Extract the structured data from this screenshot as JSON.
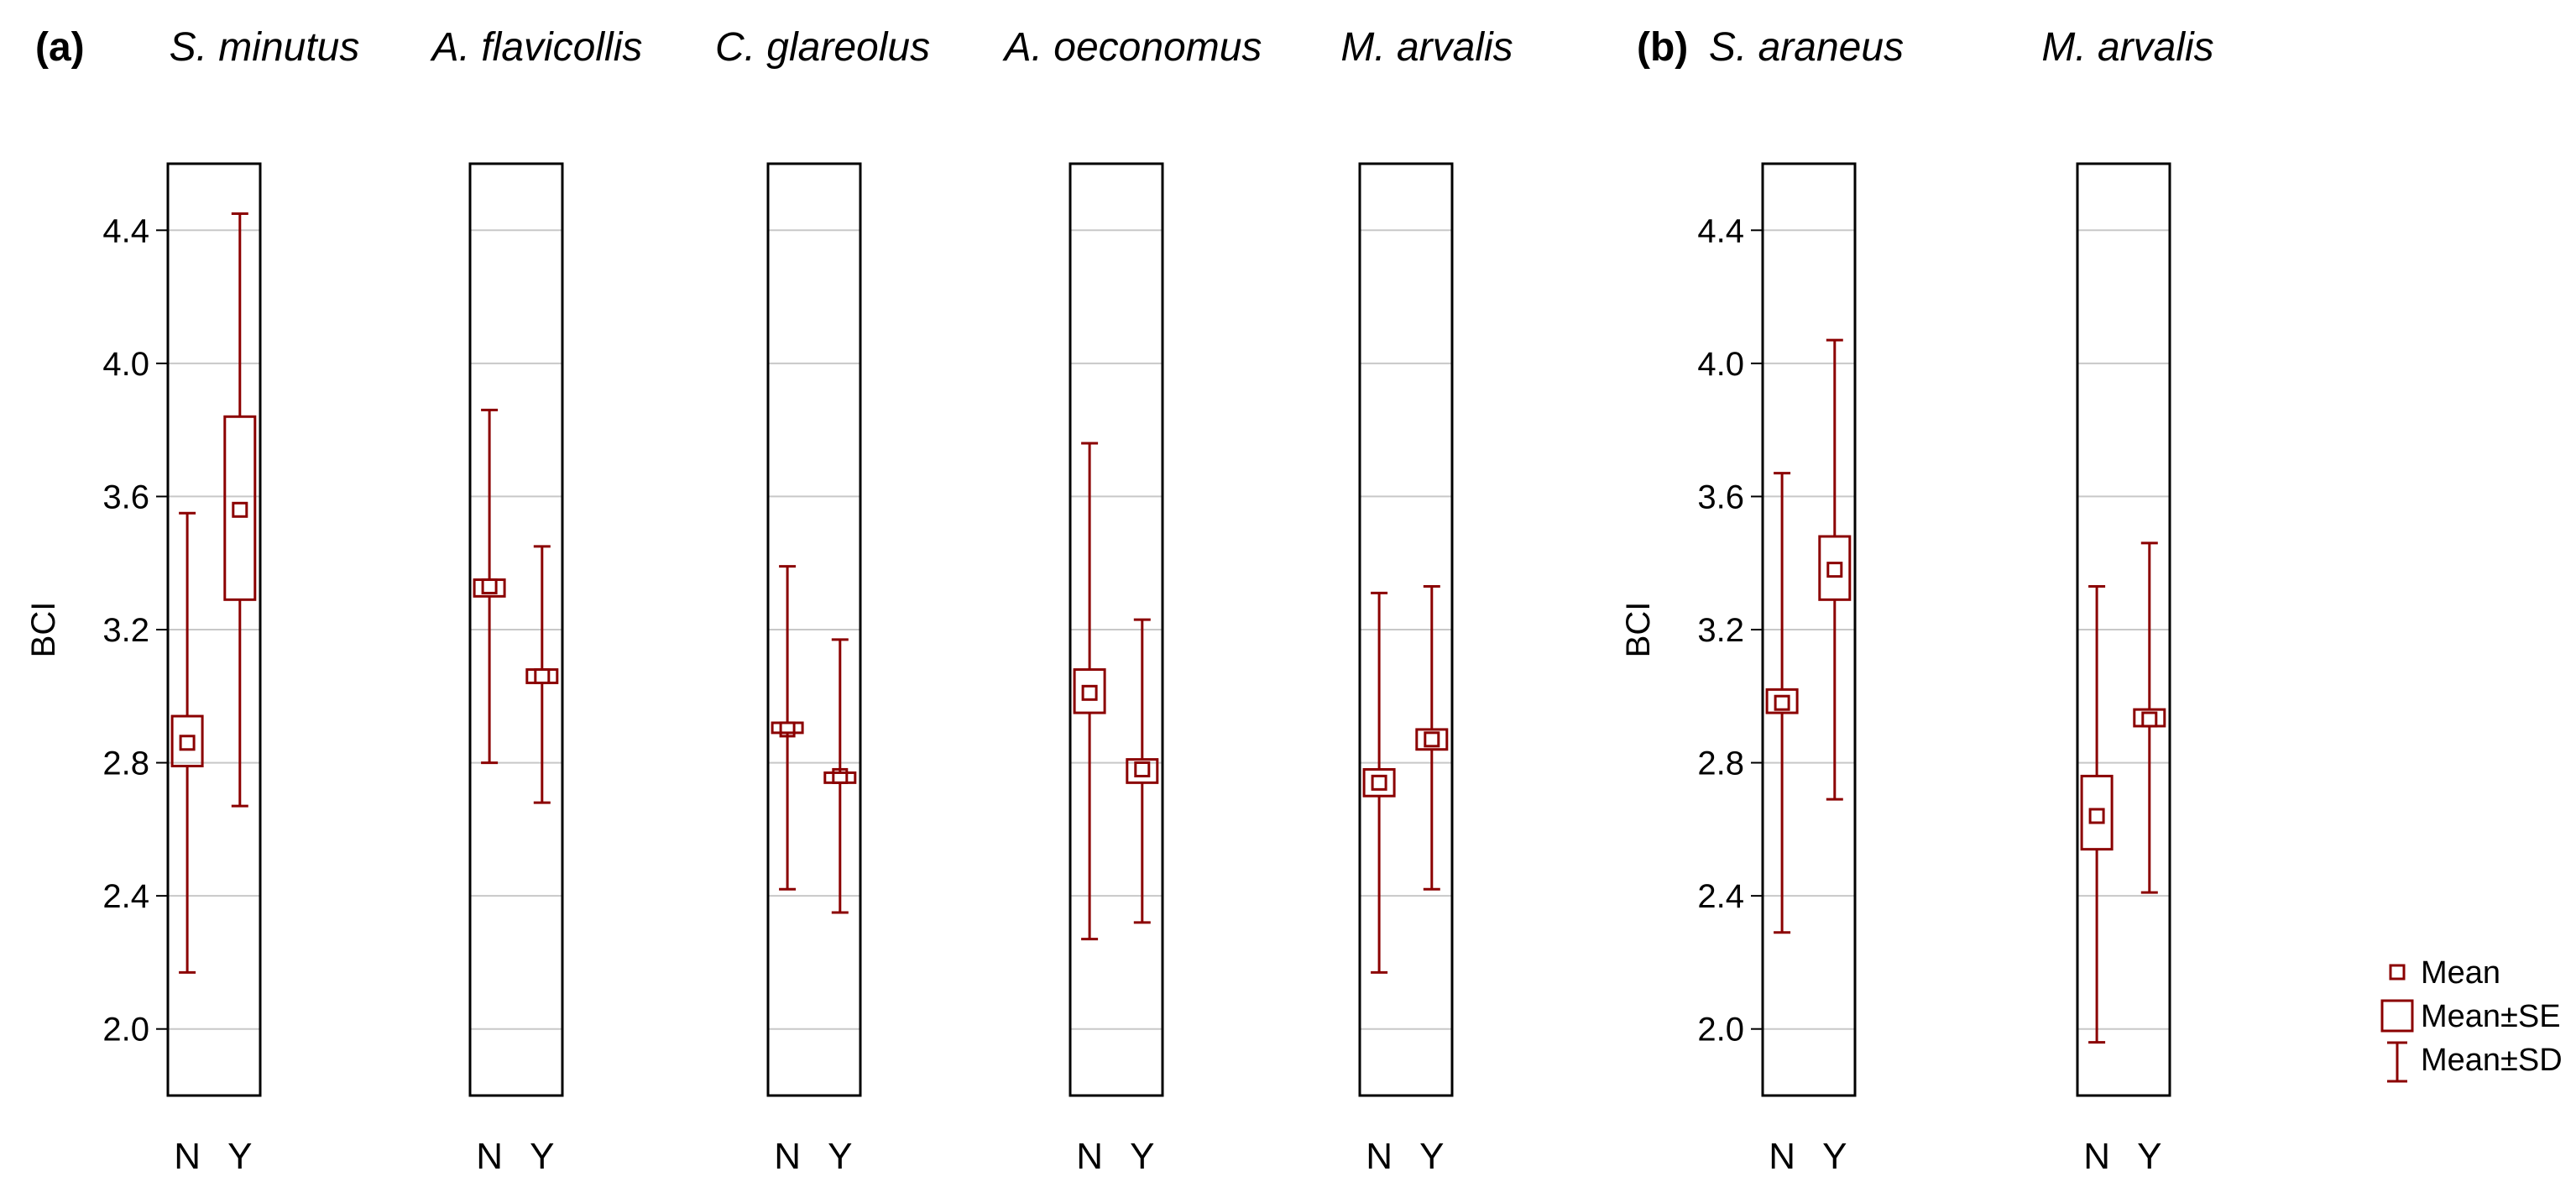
{
  "chart_data": {
    "type": "box",
    "colors": {
      "mark": "#8b0000",
      "grid": "#c8c8c8"
    },
    "ylabel": "BCI",
    "ylim": [
      1.8,
      4.6
    ],
    "yticks": [
      "2.0",
      "2.4",
      "2.8",
      "3.2",
      "3.6",
      "4.0",
      "4.4"
    ],
    "legend": {
      "position": "bottom-right",
      "entries": [
        {
          "symbol": "mean",
          "label": "Mean"
        },
        {
          "symbol": "se",
          "label": "Mean±SE"
        },
        {
          "symbol": "sd",
          "label": "Mean±SD"
        }
      ]
    },
    "panels": [
      {
        "label": "(a)",
        "subplots": [
          {
            "title": "S. minutus",
            "categories": [
              "N",
              "Y"
            ],
            "show_yaxis": true,
            "series": [
              {
                "category": "N",
                "mean": 2.86,
                "se_low": 2.79,
                "se_high": 2.94,
                "sd_low": 2.17,
                "sd_high": 3.55
              },
              {
                "category": "Y",
                "mean": 3.56,
                "se_low": 3.29,
                "se_high": 3.84,
                "sd_low": 2.67,
                "sd_high": 4.45
              }
            ]
          },
          {
            "title": "A. flavicollis",
            "categories": [
              "N",
              "Y"
            ],
            "show_yaxis": false,
            "series": [
              {
                "category": "N",
                "mean": 3.33,
                "se_low": 3.3,
                "se_high": 3.35,
                "sd_low": 2.8,
                "sd_high": 3.86
              },
              {
                "category": "Y",
                "mean": 3.06,
                "se_low": 3.04,
                "se_high": 3.08,
                "sd_low": 2.68,
                "sd_high": 3.45
              }
            ]
          },
          {
            "title": "C. glareolus",
            "categories": [
              "N",
              "Y"
            ],
            "show_yaxis": false,
            "series": [
              {
                "category": "N",
                "mean": 2.9,
                "se_low": 2.89,
                "se_high": 2.92,
                "sd_low": 2.42,
                "sd_high": 3.39
              },
              {
                "category": "Y",
                "mean": 2.76,
                "se_low": 2.74,
                "se_high": 2.77,
                "sd_low": 2.35,
                "sd_high": 3.17
              }
            ]
          },
          {
            "title": "A. oeconomus",
            "categories": [
              "N",
              "Y"
            ],
            "show_yaxis": false,
            "series": [
              {
                "category": "N",
                "mean": 3.01,
                "se_low": 2.95,
                "se_high": 3.08,
                "sd_low": 2.27,
                "sd_high": 3.76
              },
              {
                "category": "Y",
                "mean": 2.78,
                "se_low": 2.74,
                "se_high": 2.81,
                "sd_low": 2.32,
                "sd_high": 3.23
              }
            ]
          },
          {
            "title": "M. arvalis",
            "categories": [
              "N",
              "Y"
            ],
            "show_yaxis": false,
            "series": [
              {
                "category": "N",
                "mean": 2.74,
                "se_low": 2.7,
                "se_high": 2.78,
                "sd_low": 2.17,
                "sd_high": 3.31
              },
              {
                "category": "Y",
                "mean": 2.87,
                "se_low": 2.84,
                "se_high": 2.9,
                "sd_low": 2.42,
                "sd_high": 3.33
              }
            ]
          }
        ]
      },
      {
        "label": "(b)",
        "subplots": [
          {
            "title": "S. araneus",
            "categories": [
              "N",
              "Y"
            ],
            "show_yaxis": true,
            "series": [
              {
                "category": "N",
                "mean": 2.98,
                "se_low": 2.95,
                "se_high": 3.02,
                "sd_low": 2.29,
                "sd_high": 3.67
              },
              {
                "category": "Y",
                "mean": 3.38,
                "se_low": 3.29,
                "se_high": 3.48,
                "sd_low": 2.69,
                "sd_high": 4.07
              }
            ]
          },
          {
            "title": "M. arvalis",
            "categories": [
              "N",
              "Y"
            ],
            "show_yaxis": false,
            "series": [
              {
                "category": "N",
                "mean": 2.64,
                "se_low": 2.54,
                "se_high": 2.76,
                "sd_low": 1.96,
                "sd_high": 3.33
              },
              {
                "category": "Y",
                "mean": 2.93,
                "se_low": 2.91,
                "se_high": 2.96,
                "sd_low": 2.41,
                "sd_high": 3.46
              }
            ]
          }
        ]
      }
    ]
  }
}
